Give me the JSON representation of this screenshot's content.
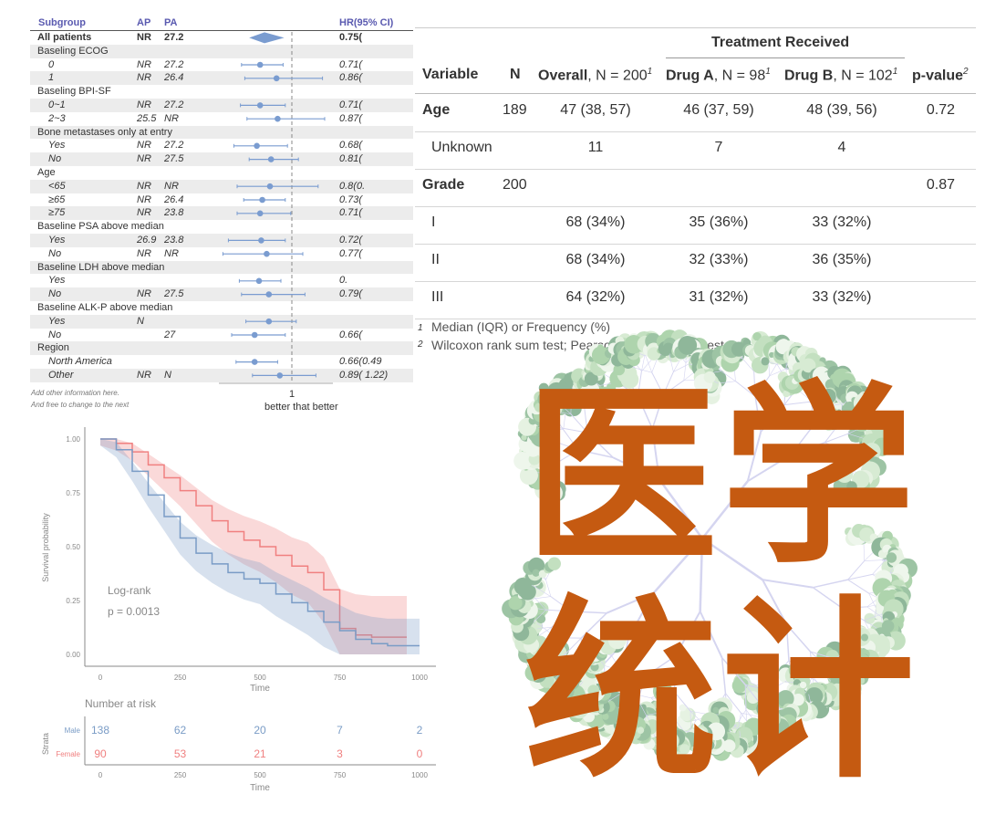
{
  "forest": {
    "headers": {
      "subgroup": "Subgroup",
      "ap": "AP",
      "pa": "PA",
      "hr": "HR(95% CI)"
    },
    "rows": [
      {
        "label": "All patients",
        "type": "overall",
        "ap": "NR",
        "pa": "27.2",
        "hr_text": "0.75(",
        "hr": 0.75,
        "lo": 0.61,
        "hi": 0.93
      },
      {
        "label": "Baseling ECOG",
        "type": "group"
      },
      {
        "label": "0",
        "type": "sub",
        "ap": "NR",
        "pa": "27.2",
        "hr_text": "0.71(",
        "hr": 0.71,
        "lo": 0.54,
        "hi": 0.92
      },
      {
        "label": "1",
        "type": "sub",
        "ap": "NR",
        "pa": "26.4",
        "hr_text": "0.86(",
        "hr": 0.86,
        "lo": 0.57,
        "hi": 1.28
      },
      {
        "label": "Baseling BPI-SF",
        "type": "group"
      },
      {
        "label": "0~1",
        "type": "sub",
        "ap": "NR",
        "pa": "27.2",
        "hr_text": "0.71(",
        "hr": 0.71,
        "lo": 0.53,
        "hi": 0.94
      },
      {
        "label": "2~3",
        "type": "sub",
        "ap": "25.5",
        "pa": "NR",
        "hr_text": "0.87(",
        "hr": 0.87,
        "lo": 0.59,
        "hi": 1.3
      },
      {
        "label": "Bone metastases only at entry",
        "type": "group"
      },
      {
        "label": "Yes",
        "type": "sub",
        "ap": "NR",
        "pa": "27.2",
        "hr_text": "0.68(",
        "hr": 0.68,
        "lo": 0.47,
        "hi": 0.96
      },
      {
        "label": "No",
        "type": "sub",
        "ap": "NR",
        "pa": "27.5",
        "hr_text": "0.81(",
        "hr": 0.81,
        "lo": 0.61,
        "hi": 1.06
      },
      {
        "label": "Age",
        "type": "group"
      },
      {
        "label": "<65",
        "type": "sub",
        "ap": "NR",
        "pa": "NR",
        "hr_text": "0.8(0.",
        "hr": 0.8,
        "lo": 0.5,
        "hi": 1.24
      },
      {
        "label": "≥65",
        "type": "sub",
        "ap": "NR",
        "pa": "26.4",
        "hr_text": "0.73(",
        "hr": 0.73,
        "lo": 0.56,
        "hi": 0.94
      },
      {
        "label": "≥75",
        "type": "sub",
        "ap": "NR",
        "pa": "23.8",
        "hr_text": "0.71(",
        "hr": 0.71,
        "lo": 0.5,
        "hi": 0.99
      },
      {
        "label": "Baseline PSA above median",
        "type": "group"
      },
      {
        "label": "Yes",
        "type": "sub",
        "ap": "26.9",
        "pa": "23.8",
        "hr_text": "0.72(",
        "hr": 0.72,
        "lo": 0.42,
        "hi": 0.94
      },
      {
        "label": "No",
        "type": "sub",
        "ap": "NR",
        "pa": "NR",
        "hr_text": "0.77(",
        "hr": 0.77,
        "lo": 0.37,
        "hi": 1.1
      },
      {
        "label": "Baseline LDH above median",
        "type": "group"
      },
      {
        "label": "Yes",
        "type": "sub",
        "ap": "",
        "pa": "",
        "hr_text": "0.",
        "hr": 0.7,
        "lo": 0.52,
        "hi": 0.9
      },
      {
        "label": "No",
        "type": "sub",
        "ap": "NR",
        "pa": "27.5",
        "hr_text": "0.79(",
        "hr": 0.79,
        "lo": 0.54,
        "hi": 1.12
      },
      {
        "label": "Baseline ALK-P above median",
        "type": "group"
      },
      {
        "label": "Yes",
        "type": "sub",
        "ap": "N",
        "pa": "",
        "hr_text": "",
        "hr": 0.79,
        "lo": 0.58,
        "hi": 1.04
      },
      {
        "label": "No",
        "type": "sub",
        "ap": "",
        "pa": "27",
        "hr_text": "0.66(",
        "hr": 0.66,
        "lo": 0.45,
        "hi": 0.94
      },
      {
        "label": "Region",
        "type": "group"
      },
      {
        "label": "North America",
        "type": "sub",
        "ap": "",
        "pa": "",
        "hr_text": "0.66(0.49",
        "hr": 0.66,
        "lo": 0.49,
        "hi": 0.87
      },
      {
        "label": "Other",
        "type": "sub",
        "ap": "NR",
        "pa": "N",
        "hr_text": "0.89(   1.22)",
        "hr": 0.89,
        "lo": 0.64,
        "hi": 1.22
      }
    ],
    "x_tick": "1",
    "x_label": "better  that better",
    "note1": "Add other information here.",
    "note2": "And free to change to the next",
    "color": "#7a9cd0"
  },
  "table": {
    "spanner": "Treatment Received",
    "headers": [
      {
        "b": "Variable",
        "r": ""
      },
      {
        "b": "N",
        "r": ""
      },
      {
        "b": "Overall",
        "r": ", N = 200",
        "sup": "1"
      },
      {
        "b": "Drug A",
        "r": ", N = 98",
        "sup": "1"
      },
      {
        "b": "Drug B",
        "r": ", N = 102",
        "sup": "1"
      },
      {
        "b": "p-value",
        "r": "",
        "sup": "2"
      }
    ],
    "rows": [
      {
        "var": "Age",
        "bold": true,
        "n": "189",
        "overall": "47 (38, 57)",
        "a": "46 (37, 59)",
        "b": "48 (39, 56)",
        "p": "0.72"
      },
      {
        "var": "Unknown",
        "bold": false,
        "n": "",
        "overall": "11",
        "a": "7",
        "b": "4",
        "p": ""
      },
      {
        "var": "Grade",
        "bold": true,
        "n": "200",
        "overall": "",
        "a": "",
        "b": "",
        "p": "0.87"
      },
      {
        "var": "I",
        "bold": false,
        "n": "",
        "overall": "68 (34%)",
        "a": "35 (36%)",
        "b": "33 (32%)",
        "p": ""
      },
      {
        "var": "II",
        "bold": false,
        "n": "",
        "overall": "68 (34%)",
        "a": "32 (33%)",
        "b": "36 (35%)",
        "p": ""
      },
      {
        "var": "III",
        "bold": false,
        "n": "",
        "overall": "64 (32%)",
        "a": "31 (32%)",
        "b": "33 (32%)",
        "p": ""
      }
    ],
    "foot1": "Median (IQR) or Frequency (%)",
    "foot2": "Wilcoxon rank sum test; Pearson's Chi-squared test",
    "foot_sup1": "1",
    "foot_sup2": "2"
  },
  "chart_data": {
    "type": "line",
    "ylabel": "Survival probability",
    "xlabel": "Time",
    "xlim": [
      0,
      1000
    ],
    "ylim": [
      0,
      1
    ],
    "x_ticks": [
      "0",
      "250",
      "500",
      "750",
      "1000"
    ],
    "y_ticks": [
      "0.00",
      "0.25",
      "0.50",
      "0.75",
      "1.00"
    ],
    "annotation": [
      "Log-rank",
      "p = 0.0013"
    ],
    "series": [
      {
        "name": "Male",
        "color": "#7a9cc6",
        "t": [
          0,
          50,
          100,
          150,
          200,
          250,
          300,
          350,
          400,
          450,
          500,
          550,
          600,
          650,
          700,
          750,
          800,
          850,
          900,
          950,
          1000
        ],
        "s": [
          1,
          0.95,
          0.85,
          0.74,
          0.64,
          0.54,
          0.47,
          0.42,
          0.38,
          0.35,
          0.33,
          0.28,
          0.24,
          0.2,
          0.15,
          0.11,
          0.07,
          0.05,
          0.04,
          0.04,
          0.04
        ]
      },
      {
        "name": "Female",
        "color": "#f08080",
        "t": [
          0,
          50,
          100,
          150,
          200,
          250,
          300,
          350,
          400,
          450,
          500,
          550,
          600,
          650,
          700,
          750,
          800,
          850,
          900,
          960
        ],
        "s": [
          1,
          0.98,
          0.94,
          0.88,
          0.82,
          0.76,
          0.69,
          0.62,
          0.57,
          0.53,
          0.5,
          0.46,
          0.41,
          0.38,
          0.3,
          0.12,
          0.09,
          0.08,
          0.08,
          0.08
        ]
      }
    ],
    "risk_table": {
      "title": "Number at risk",
      "ylabel": "Strata",
      "times": [
        "0",
        "250",
        "500",
        "750",
        "1000"
      ],
      "xlabel": "Time",
      "rows": [
        {
          "name": "Male",
          "values": [
            "138",
            "62",
            "20",
            "7",
            "2"
          ]
        },
        {
          "name": "Female",
          "values": [
            "90",
            "53",
            "21",
            "3",
            "0"
          ]
        }
      ]
    }
  },
  "overlay": {
    "text": "医学统计",
    "color": "#c55a11"
  }
}
